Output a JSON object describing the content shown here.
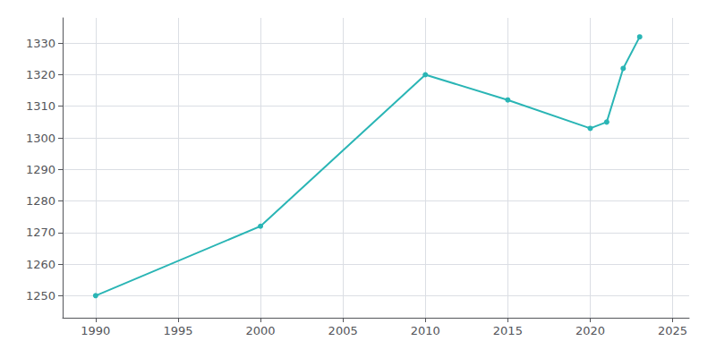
{
  "chart_data": {
    "type": "line",
    "x": [
      1990,
      2000,
      2010,
      2015,
      2020,
      2021,
      2022,
      2023
    ],
    "values": [
      1250,
      1272,
      1320,
      1312,
      1303,
      1305,
      1322,
      1332
    ],
    "color": "#2ab5b5",
    "marker": "circle",
    "xlim": [
      1988,
      2026
    ],
    "ylim": [
      1243,
      1338
    ],
    "xticks": [
      1990,
      1995,
      2000,
      2005,
      2010,
      2015,
      2020,
      2025
    ],
    "yticks": [
      1250,
      1260,
      1270,
      1280,
      1290,
      1300,
      1310,
      1320,
      1330
    ],
    "grid": true
  }
}
